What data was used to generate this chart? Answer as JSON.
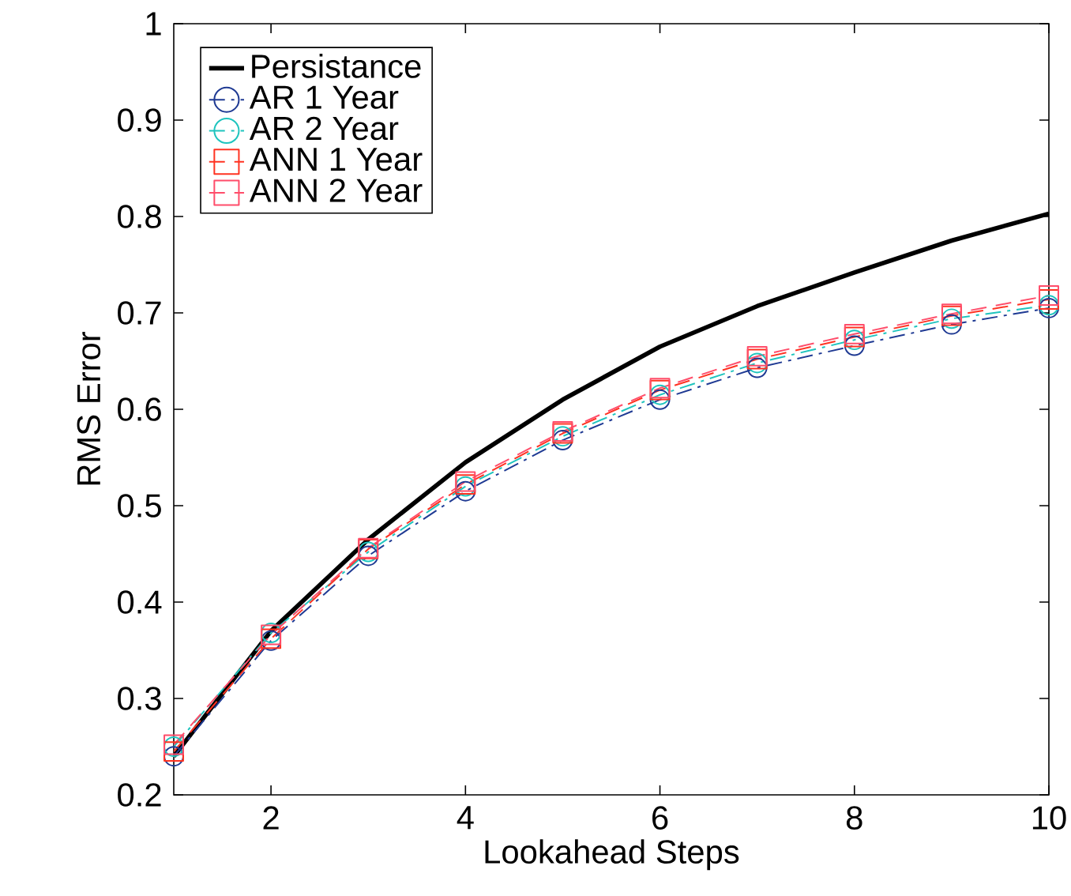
{
  "chart_data": {
    "type": "line",
    "xlabel": "Lookahead Steps",
    "ylabel": "RMS Error",
    "x": [
      1,
      2,
      3,
      4,
      5,
      6,
      7,
      8,
      9,
      10
    ],
    "xlim": [
      1,
      10
    ],
    "xticks": [
      2,
      4,
      6,
      8,
      10
    ],
    "ylim": [
      0.2,
      1
    ],
    "yticks": [
      0.2,
      0.3,
      0.4,
      0.5,
      0.6,
      0.7,
      0.8,
      0.9,
      1
    ],
    "grid": false,
    "legend": "top left",
    "series": [
      {
        "name": "Persistance",
        "color": "#000000",
        "marker": "none",
        "line_style": "solid",
        "values": [
          0.24,
          0.37,
          0.465,
          0.545,
          0.61,
          0.665,
          0.707,
          0.742,
          0.775,
          0.803
        ]
      },
      {
        "name": "AR 1 Year",
        "color": "#1f3a93",
        "marker": "circle",
        "line_style": "dashdot",
        "values": [
          0.24,
          0.36,
          0.448,
          0.515,
          0.568,
          0.61,
          0.643,
          0.666,
          0.688,
          0.705
        ]
      },
      {
        "name": "AR 2 Year",
        "color": "#1fc4be",
        "marker": "circle",
        "line_style": "dashdot",
        "values": [
          0.25,
          0.368,
          0.452,
          0.52,
          0.572,
          0.615,
          0.648,
          0.672,
          0.694,
          0.708
        ]
      },
      {
        "name": "ANN 1 Year",
        "color": "#ff3322",
        "marker": "square",
        "line_style": "dashed",
        "values": [
          0.245,
          0.362,
          0.455,
          0.522,
          0.575,
          0.62,
          0.652,
          0.675,
          0.697,
          0.714
        ]
      },
      {
        "name": "ANN 2 Year",
        "color": "#ff4d6a",
        "marker": "square",
        "line_style": "dashed",
        "values": [
          0.252,
          0.366,
          0.456,
          0.525,
          0.577,
          0.622,
          0.655,
          0.678,
          0.699,
          0.718
        ]
      }
    ]
  }
}
